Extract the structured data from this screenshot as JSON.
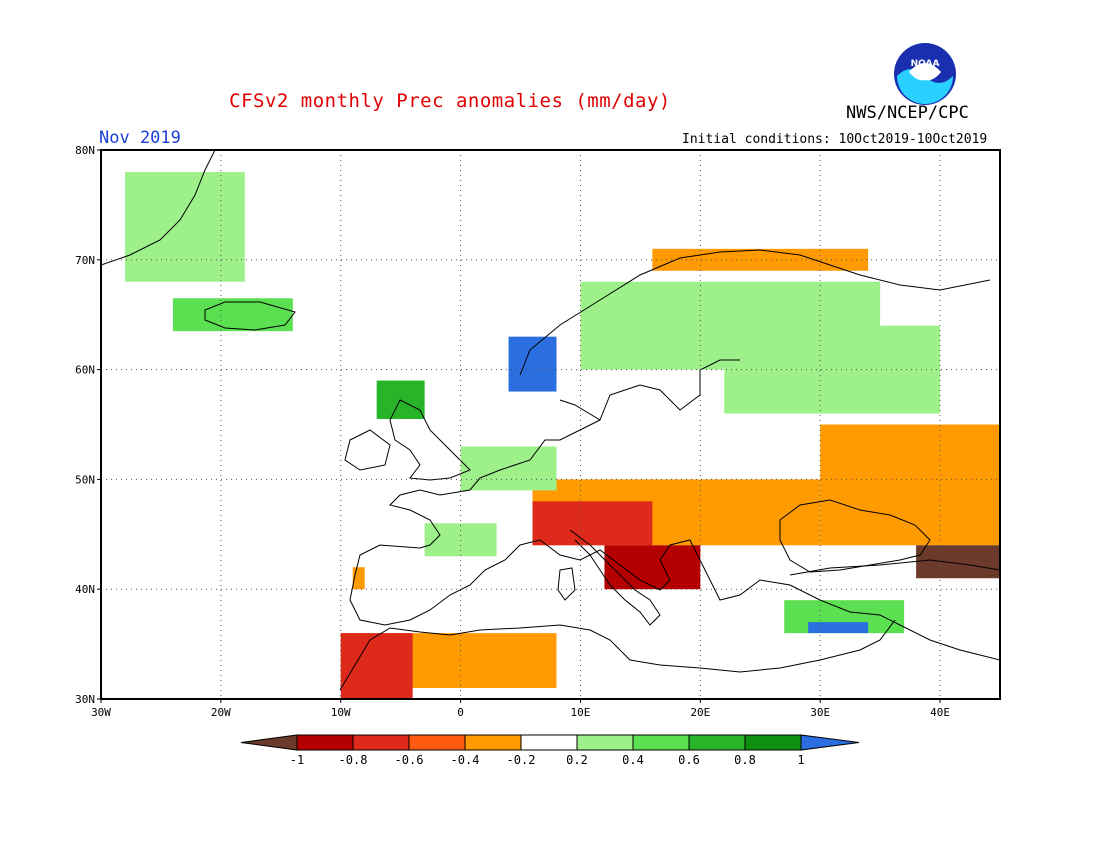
{
  "title": "CFSv2 monthly Prec anomalies (mm/day)",
  "agency": "NWS/NCEP/CPC",
  "logo_text": "NOAA",
  "month": "Nov 2019",
  "initial_conditions": "Initial conditions: 10Oct2019-10Oct2019",
  "map": {
    "lon_range": [
      -30,
      45
    ],
    "lat_range": [
      30,
      80
    ],
    "lat_ticks": [
      {
        "value": 30,
        "label": "30N"
      },
      {
        "value": 40,
        "label": "40N"
      },
      {
        "value": 50,
        "label": "50N"
      },
      {
        "value": 60,
        "label": "60N"
      },
      {
        "value": 70,
        "label": "70N"
      },
      {
        "value": 80,
        "label": "80N"
      }
    ],
    "lon_ticks": [
      {
        "value": -30,
        "label": "30W"
      },
      {
        "value": -20,
        "label": "20W"
      },
      {
        "value": -10,
        "label": "10W"
      },
      {
        "value": 0,
        "label": "0"
      },
      {
        "value": 10,
        "label": "10E"
      },
      {
        "value": 20,
        "label": "20E"
      },
      {
        "value": 30,
        "label": "30E"
      },
      {
        "value": 40,
        "label": "40E"
      }
    ],
    "grid_lines": "dotted"
  },
  "colorbar": {
    "labels": [
      "-1",
      "-0.8",
      "-0.6",
      "-0.4",
      "-0.2",
      "0.2",
      "0.4",
      "0.6",
      "0.8",
      "1"
    ],
    "colors": [
      "#6b3a2a",
      "#b40000",
      "#dd2a1a",
      "#ff5a10",
      "#ff9a00",
      "#ffffff",
      "#9ef08a",
      "#5ae050",
      "#28b428",
      "#109010",
      "#2a6ee0"
    ]
  },
  "anomaly_regions": [
    {
      "name": "greenland-east",
      "lon": [
        -28,
        -18
      ],
      "lat": [
        68,
        78
      ],
      "color": "#9ef08a"
    },
    {
      "name": "iceland",
      "lon": [
        -24,
        -14
      ],
      "lat": [
        63.5,
        66.5
      ],
      "color": "#5ae050"
    },
    {
      "name": "norway-coast-wet",
      "lon": [
        4,
        8
      ],
      "lat": [
        58,
        63
      ],
      "color": "#2a6ee0"
    },
    {
      "name": "scotland-wet",
      "lon": [
        -7,
        -3
      ],
      "lat": [
        55.5,
        59
      ],
      "color": "#28b428"
    },
    {
      "name": "scandinavia-north",
      "lon": [
        10,
        35
      ],
      "lat": [
        60,
        68
      ],
      "color": "#9ef08a"
    },
    {
      "name": "finland-russia",
      "lon": [
        22,
        40
      ],
      "lat": [
        56,
        64
      ],
      "color": "#9ef08a"
    },
    {
      "name": "nordkapp-dry",
      "lon": [
        16,
        34
      ],
      "lat": [
        69,
        71
      ],
      "color": "#ff9a00"
    },
    {
      "name": "central-europe-dry",
      "lon": [
        6,
        30
      ],
      "lat": [
        44,
        50
      ],
      "color": "#ff9a00"
    },
    {
      "name": "alps-dry",
      "lon": [
        6,
        16
      ],
      "lat": [
        44,
        48
      ],
      "color": "#dd2a1a"
    },
    {
      "name": "adriatic-dry",
      "lon": [
        12,
        20
      ],
      "lat": [
        40,
        44
      ],
      "color": "#b40000"
    },
    {
      "name": "ukraine-russia-dry",
      "lon": [
        30,
        45
      ],
      "lat": [
        44,
        55
      ],
      "color": "#ff9a00"
    },
    {
      "name": "caucasus-dry",
      "lon": [
        38,
        45
      ],
      "lat": [
        41,
        44
      ],
      "color": "#6b3a2a"
    },
    {
      "name": "turkey-wet",
      "lon": [
        27,
        37
      ],
      "lat": [
        36,
        39
      ],
      "color": "#5ae050"
    },
    {
      "name": "cyprus-wet",
      "lon": [
        29,
        34
      ],
      "lat": [
        36,
        37
      ],
      "color": "#2a6ee0"
    },
    {
      "name": "north-africa-dry",
      "lon": [
        -10,
        8
      ],
      "lat": [
        31,
        36
      ],
      "color": "#ff9a00"
    },
    {
      "name": "morocco-dry",
      "lon": [
        -10,
        -4
      ],
      "lat": [
        30,
        36
      ],
      "color": "#dd2a1a"
    },
    {
      "name": "iberia-east-dry",
      "lon": [
        -9,
        -8
      ],
      "lat": [
        40,
        42
      ],
      "color": "#ff9a00"
    },
    {
      "name": "france-wet",
      "lon": [
        -3,
        3
      ],
      "lat": [
        43,
        46
      ],
      "color": "#9ef08a"
    },
    {
      "name": "benelux-wet",
      "lon": [
        0,
        8
      ],
      "lat": [
        49,
        53
      ],
      "color": "#9ef08a"
    }
  ]
}
